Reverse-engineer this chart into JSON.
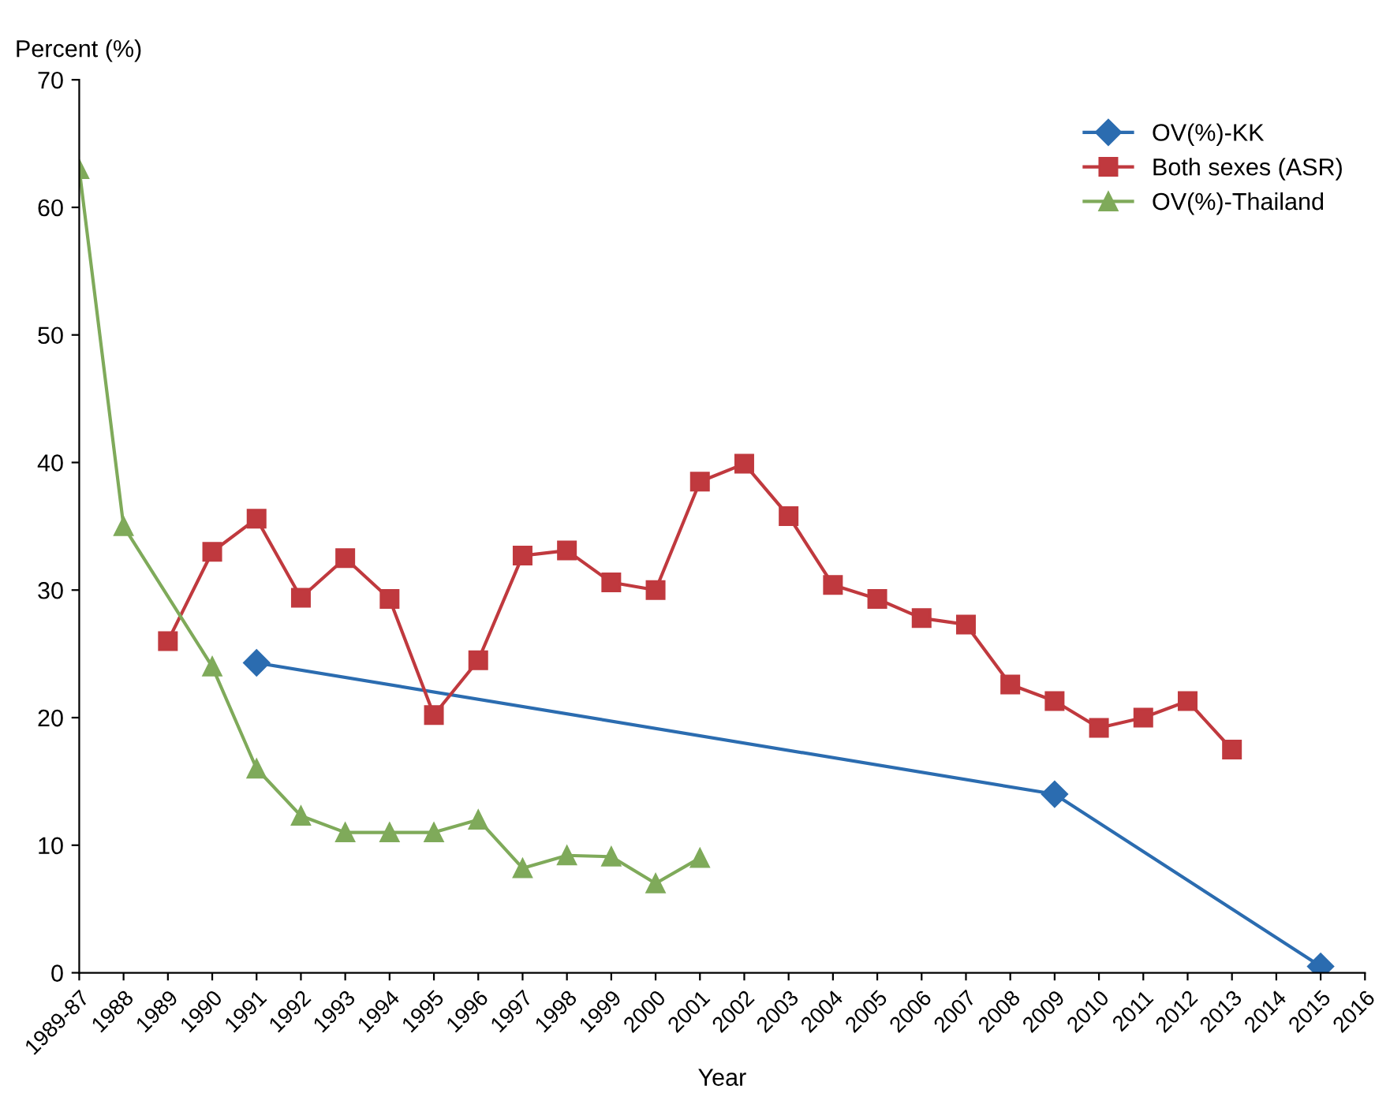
{
  "chart_data": {
    "type": "line",
    "xlabel": "Year",
    "ylabel": "Percent (%)",
    "xlim": [
      1987,
      2016
    ],
    "xticks": [
      {
        "value": 1987,
        "label": "1989-87"
      },
      1988,
      1989,
      1990,
      1991,
      1992,
      1993,
      1994,
      1995,
      1996,
      1997,
      1998,
      1999,
      2000,
      2001,
      2002,
      2003,
      2004,
      2005,
      2006,
      2007,
      2008,
      2009,
      2010,
      2011,
      2012,
      2013,
      2014,
      2015,
      2016
    ],
    "series": [
      {
        "name": "OV(%)-KK",
        "color": "#2b6cb0",
        "marker": "diamond",
        "x": [
          1991,
          2009,
          2015
        ],
        "values": [
          24.3,
          14,
          0.5
        ]
      },
      {
        "name": "Both sexes (ASR)",
        "color": "#c0393e",
        "marker": "square",
        "x": [
          1989,
          1990,
          1991,
          1992,
          1993,
          1994,
          1995,
          1996,
          1997,
          1998,
          1999,
          2000,
          2001,
          2002,
          2003,
          2004,
          2005,
          2006,
          2007,
          2008,
          2009,
          2010,
          2011,
          2012,
          2013
        ],
        "values": [
          26,
          33,
          35.6,
          29.4,
          32.5,
          29.3,
          20.2,
          24.5,
          32.7,
          33.1,
          30.6,
          30,
          38.5,
          39.9,
          35.8,
          30.4,
          29.3,
          27.8,
          27.3,
          22.6,
          21.3,
          19.2,
          20,
          21.3,
          17.5
        ]
      },
      {
        "name": "OV(%)-Thailand",
        "color": "#7faa5a",
        "marker": "triangle",
        "x": [
          1987,
          1988,
          1990,
          1991,
          1992,
          1993,
          1994,
          1995,
          1996,
          1997,
          1998,
          1999,
          2000,
          2001
        ],
        "values": [
          63,
          35,
          24,
          16,
          12.3,
          11,
          11,
          11,
          12,
          8.2,
          9.2,
          9.1,
          7,
          9
        ]
      }
    ],
    "ylim": [
      0,
      70
    ],
    "yticks": [
      0,
      10,
      20,
      30,
      40,
      50,
      60,
      70
    ],
    "grid": false,
    "legend": "right",
    "line_style": "solid"
  }
}
